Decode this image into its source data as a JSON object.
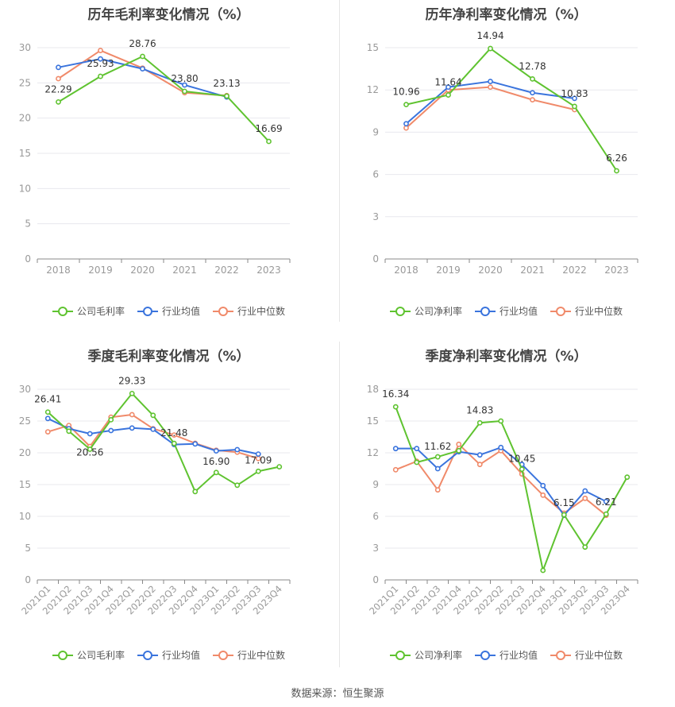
{
  "colors": {
    "company": "#5fc330",
    "avg": "#3a74dd",
    "median": "#f08a6a",
    "grid": "#e8e8ee",
    "axis": "#888888",
    "label": "#999999",
    "value": "#333333"
  },
  "source": "数据来源：恒生聚源",
  "chart_data": [
    {
      "type": "line",
      "title": "历年毛利率变化情况（%）",
      "x": [
        "2018",
        "2019",
        "2020",
        "2021",
        "2022",
        "2023"
      ],
      "ylim": [
        0,
        30
      ],
      "yticks": [
        0,
        5,
        10,
        15,
        20,
        25,
        30
      ],
      "legend": [
        "公司毛利率",
        "行业均值",
        "行业中位数"
      ],
      "series": [
        {
          "name": "公司毛利率",
          "values": [
            22.29,
            25.93,
            28.76,
            23.8,
            23.13,
            16.69
          ]
        },
        {
          "name": "行业均值",
          "values": [
            27.2,
            28.4,
            27.0,
            24.7,
            23.0,
            null
          ]
        },
        {
          "name": "行业中位数",
          "values": [
            25.6,
            29.6,
            27.1,
            23.6,
            23.2,
            null
          ]
        }
      ],
      "labels": [
        "22.29",
        "25.93",
        "28.76",
        "23.80",
        "23.13",
        "16.69"
      ]
    },
    {
      "type": "line",
      "title": "历年净利率变化情况（%）",
      "x": [
        "2018",
        "2019",
        "2020",
        "2021",
        "2022",
        "2023"
      ],
      "ylim": [
        0,
        15
      ],
      "yticks": [
        0,
        3,
        6,
        9,
        12,
        15
      ],
      "legend": [
        "公司净利率",
        "行业均值",
        "行业中位数"
      ],
      "series": [
        {
          "name": "公司净利率",
          "values": [
            10.96,
            11.64,
            14.94,
            12.78,
            10.83,
            6.26
          ]
        },
        {
          "name": "行业均值",
          "values": [
            9.6,
            12.2,
            12.6,
            11.8,
            11.4,
            null
          ]
        },
        {
          "name": "行业中位数",
          "values": [
            9.3,
            12.0,
            12.2,
            11.3,
            10.6,
            null
          ]
        }
      ],
      "labels": [
        "10.96",
        "11.64",
        "14.94",
        "12.78",
        "10.83",
        "6.26"
      ]
    },
    {
      "type": "line",
      "title": "季度毛利率变化情况（%）",
      "x": [
        "2021Q1",
        "2021Q2",
        "2021Q3",
        "2021Q4",
        "2022Q1",
        "2022Q2",
        "2022Q3",
        "2022Q4",
        "2023Q1",
        "2023Q2",
        "2023Q3",
        "2023Q4"
      ],
      "ylim": [
        0,
        30
      ],
      "yticks": [
        0,
        5,
        10,
        15,
        20,
        25,
        30
      ],
      "legend": [
        "公司毛利率",
        "行业均值",
        "行业中位数"
      ],
      "series": [
        {
          "name": "公司毛利率",
          "values": [
            26.41,
            23.4,
            20.56,
            25.2,
            29.33,
            25.9,
            21.48,
            13.9,
            16.9,
            14.9,
            17.09,
            17.8
          ]
        },
        {
          "name": "行业均值",
          "values": [
            25.4,
            23.8,
            23.0,
            23.5,
            23.9,
            23.7,
            21.3,
            21.4,
            20.3,
            20.5,
            19.8,
            null
          ]
        },
        {
          "name": "行业中位数",
          "values": [
            23.3,
            24.3,
            21.0,
            25.6,
            26.0,
            23.8,
            22.8,
            21.5,
            20.4,
            20.1,
            19.1,
            null
          ]
        }
      ],
      "labels": [
        "26.41",
        "",
        "20.56",
        "",
        "29.33",
        "",
        "21.48",
        "",
        "16.90",
        "",
        "17.09",
        ""
      ]
    },
    {
      "type": "line",
      "title": "季度净利率变化情况（%）",
      "x": [
        "2021Q1",
        "2021Q2",
        "2021Q3",
        "2021Q4",
        "2022Q1",
        "2022Q2",
        "2022Q3",
        "2022Q4",
        "2023Q1",
        "2023Q2",
        "2023Q3",
        "2023Q4"
      ],
      "ylim": [
        0,
        18
      ],
      "yticks": [
        0,
        3,
        6,
        9,
        12,
        15,
        18
      ],
      "legend": [
        "公司净利率",
        "行业均值",
        "行业中位数"
      ],
      "series": [
        {
          "name": "公司净利率",
          "values": [
            16.34,
            11.1,
            11.62,
            12.2,
            14.83,
            15.0,
            10.45,
            0.9,
            6.15,
            3.1,
            6.21,
            9.7
          ]
        },
        {
          "name": "行业均值",
          "values": [
            12.4,
            12.4,
            10.5,
            12.1,
            11.8,
            12.5,
            10.9,
            8.9,
            6.1,
            8.4,
            7.4,
            null
          ]
        },
        {
          "name": "行业中位数",
          "values": [
            10.4,
            11.2,
            8.5,
            12.8,
            10.9,
            12.2,
            10.0,
            8.0,
            6.3,
            7.7,
            6.1,
            null
          ]
        }
      ],
      "labels": [
        "16.34",
        "",
        "11.62",
        "",
        "14.83",
        "",
        "10.45",
        "",
        "6.15",
        "",
        "6.21",
        ""
      ]
    }
  ]
}
